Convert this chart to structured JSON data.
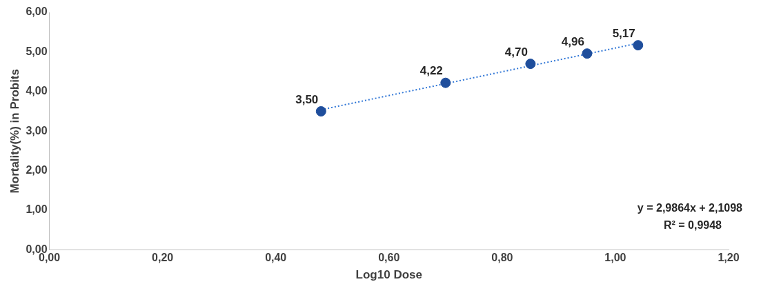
{
  "chart_data": {
    "type": "scatter",
    "xlabel": "Log10 Dose",
    "ylabel": "Mortality(%) in Probits",
    "xlim": [
      0,
      1.2
    ],
    "ylim": [
      0,
      6
    ],
    "xticks": [
      {
        "value": 0,
        "label": "0,00"
      },
      {
        "value": 0.2,
        "label": "0,20"
      },
      {
        "value": 0.4,
        "label": "0,40"
      },
      {
        "value": 0.6,
        "label": "0,60"
      },
      {
        "value": 0.8,
        "label": "0,80"
      },
      {
        "value": 1,
        "label": "1,00"
      },
      {
        "value": 1.2,
        "label": "1,20"
      }
    ],
    "yticks": [
      {
        "value": 0,
        "label": "0,00"
      },
      {
        "value": 1,
        "label": "1,00"
      },
      {
        "value": 2,
        "label": "2,00"
      },
      {
        "value": 3,
        "label": "3,00"
      },
      {
        "value": 4,
        "label": "4,00"
      },
      {
        "value": 5,
        "label": "5,00"
      },
      {
        "value": 6,
        "label": "6,00"
      }
    ],
    "grid": false,
    "legend": false,
    "series": [
      {
        "color": "#1f4e9c",
        "marker": "circle",
        "x": [
          0.48,
          0.7,
          0.85,
          0.95,
          1.04
        ],
        "values": [
          3.5,
          4.22,
          4.7,
          4.96,
          5.17
        ],
        "value_labels": [
          "3,50",
          "4,22",
          "4,70",
          "4,96",
          "5,17"
        ]
      },
      {
        "type": "line",
        "color": "#2e75d6",
        "marker": "none",
        "line_style": "dotted",
        "x": [
          0.48,
          1.04
        ],
        "values": [
          3.54,
          5.22
        ]
      }
    ],
    "annotations": [
      "y = 2,9864x + 2,1098",
      "R² = 0,9948"
    ]
  }
}
